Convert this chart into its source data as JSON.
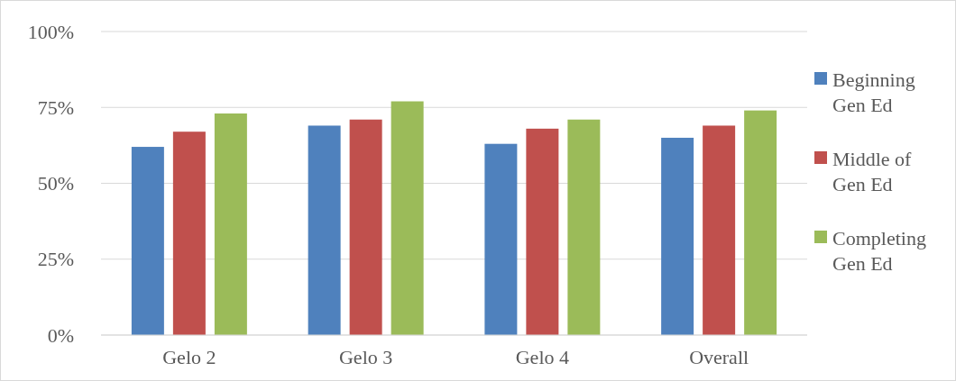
{
  "chart_data": {
    "type": "bar",
    "categories": [
      "Gelo 2",
      "Gelo 3",
      "Gelo 4",
      "Overall"
    ],
    "series": [
      {
        "name": "Beginning Gen Ed",
        "color": "#4f81bd",
        "values": [
          62,
          69,
          63,
          65
        ]
      },
      {
        "name": "Middle of Gen Ed",
        "color": "#c0504d",
        "values": [
          67,
          71,
          68,
          69
        ]
      },
      {
        "name": "Completing Gen Ed",
        "color": "#9bbb59",
        "values": [
          73,
          77,
          71,
          74
        ]
      }
    ],
    "ylim": [
      0,
      100
    ],
    "yticks": [
      {
        "value": 0,
        "label": "0%"
      },
      {
        "value": 25,
        "label": "25%"
      },
      {
        "value": 50,
        "label": "50%"
      },
      {
        "value": 75,
        "label": "75%"
      },
      {
        "value": 100,
        "label": "100%"
      }
    ],
    "grid": "y",
    "legend": "right"
  }
}
